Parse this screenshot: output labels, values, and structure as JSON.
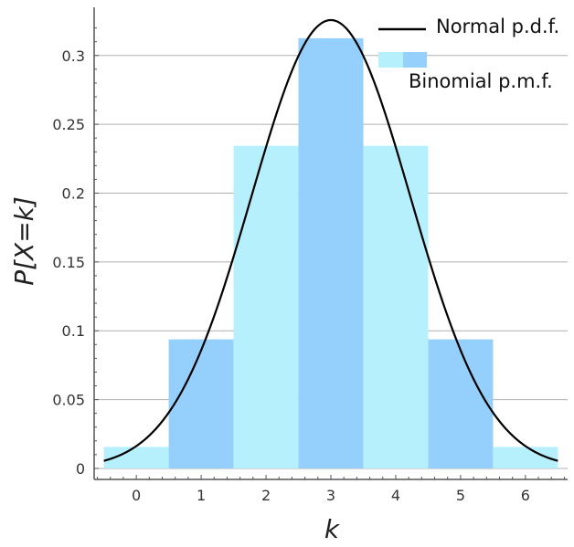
{
  "chart_data": {
    "type": "bar",
    "xlabel": "k",
    "ylabel": "P[X=k]",
    "xlim": [
      -0.65,
      6.65
    ],
    "ylim": [
      -0.008,
      0.335
    ],
    "x_ticks": [
      "0",
      "1",
      "2",
      "3",
      "4",
      "5",
      "6"
    ],
    "y_ticks": [
      "0",
      "0.05",
      "0.1",
      "0.15",
      "0.2",
      "0.25",
      "0.3"
    ],
    "grid": "horizontal",
    "legend_position": "top-right",
    "series": [
      {
        "name": "Binomial p.m.f.",
        "type": "bar",
        "x": [
          0,
          1,
          2,
          3,
          4,
          5,
          6
        ],
        "values": [
          0.015625,
          0.09375,
          0.234375,
          0.3125,
          0.234375,
          0.09375,
          0.015625
        ],
        "colors": [
          "#b7f0fd",
          "#95d0fc",
          "#b7f0fd",
          "#95d0fc",
          "#b7f0fd",
          "#95d0fc",
          "#b7f0fd"
        ]
      },
      {
        "name": "Normal p.d.f.",
        "type": "line",
        "mean": 3,
        "sd": 1.2247,
        "x_range": [
          -0.5,
          6.5
        ],
        "color": "#000000"
      }
    ],
    "legend": {
      "line_label": "Normal p.d.f.",
      "bar_label": "Binomial p.m.f."
    }
  }
}
